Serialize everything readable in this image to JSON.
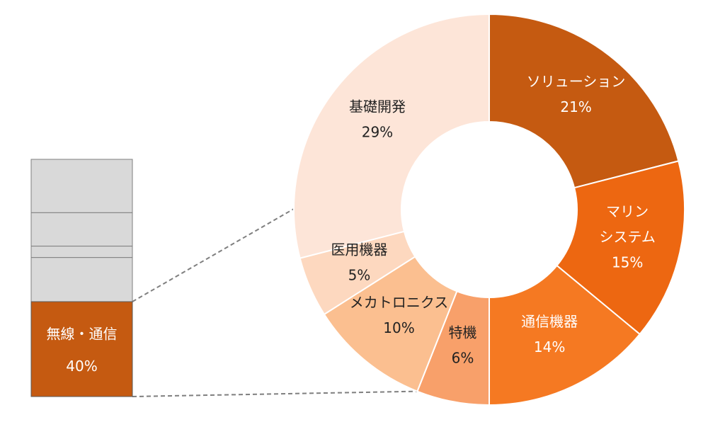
{
  "chart_data": [
    {
      "type": "bar",
      "stacked": true,
      "segments": [
        {
          "name": "",
          "value": 60,
          "color": "#d9d9d9"
        },
        {
          "name": "無線・通信",
          "value": 40,
          "label": "40%",
          "color": "#c55a11"
        }
      ]
    },
    {
      "type": "pie",
      "donut": true,
      "slices": [
        {
          "name": "ソリューション",
          "value": 21,
          "label": "21%",
          "color": "#c55a11"
        },
        {
          "name": "マリン\nシステム",
          "name_lines": [
            "マリン",
            "システム"
          ],
          "value": 15,
          "label": "15%",
          "color": "#ed6711"
        },
        {
          "name": "通信機器",
          "value": 14,
          "label": "14%",
          "color": "#f57922"
        },
        {
          "name": "特機",
          "value": 6,
          "label": "6%",
          "color": "#f8a06a"
        },
        {
          "name": "メカトロニクス",
          "value": 10,
          "label": "10%",
          "color": "#fbbf90"
        },
        {
          "name": "医用機器",
          "value": 5,
          "label": "5%",
          "color": "#fdd8bf"
        },
        {
          "name": "基礎開発",
          "value": 29,
          "label": "29%",
          "color": "#fde5d8"
        }
      ]
    }
  ]
}
